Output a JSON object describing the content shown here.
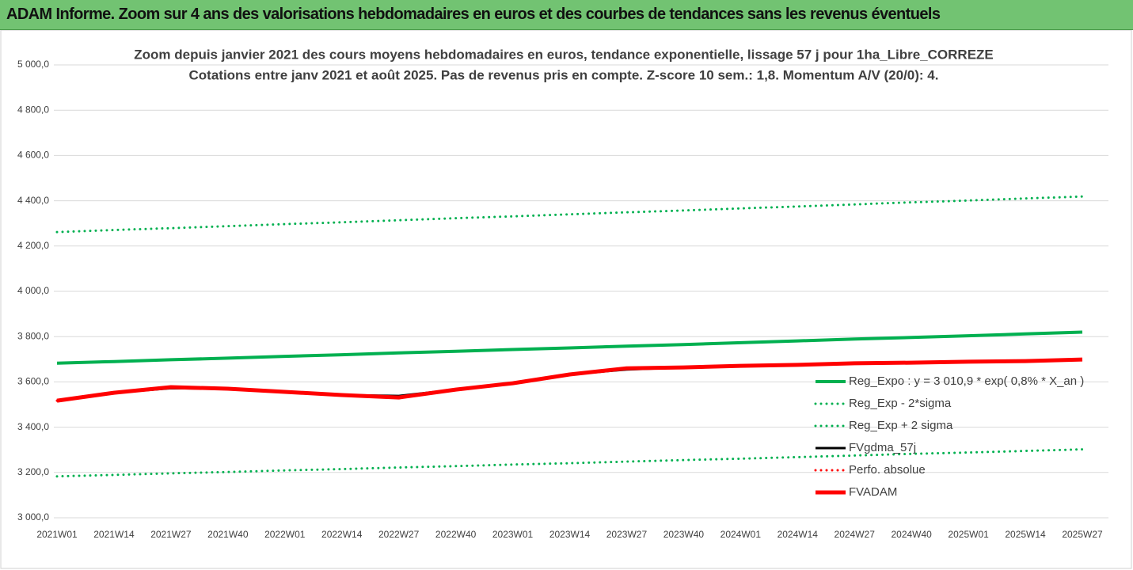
{
  "banner": "ADAM Informe. Zoom sur 4 ans des valorisations hebdomadaires en euros et des courbes de tendances sans les revenus éventuels",
  "chart_data": {
    "type": "line",
    "title": "Zoom depuis janvier 2021 des cours moyens hebdomadaires en euros, tendance exponentielle, lissage 57 j pour 1ha_Libre_CORREZE",
    "subtitle": "Cotations entre janv 2021 et août 2025.  Pas de revenus pris en compte. Z-score 10 sem.: 1,8. Momentum A/V (20/0): 4.",
    "categories": [
      "2021W01",
      "2021W14",
      "2021W27",
      "2021W40",
      "2022W01",
      "2022W14",
      "2022W27",
      "2022W40",
      "2023W01",
      "2023W14",
      "2023W27",
      "2023W40",
      "2024W01",
      "2024W14",
      "2024W27",
      "2024W40",
      "2025W01",
      "2025W14",
      "2025W27"
    ],
    "ylim": [
      3000,
      5000
    ],
    "yticks": [
      {
        "value": 3000,
        "label": "3 000,0"
      },
      {
        "value": 3200,
        "label": "3 200,0"
      },
      {
        "value": 3400,
        "label": "3 400,0"
      },
      {
        "value": 3600,
        "label": "3 600,0"
      },
      {
        "value": 3800,
        "label": "3 800,0"
      },
      {
        "value": 4000,
        "label": "4 000,0"
      },
      {
        "value": 4200,
        "label": "4 200,0"
      },
      {
        "value": 4400,
        "label": "4 400,0"
      },
      {
        "value": 4600,
        "label": "4 600,0"
      },
      {
        "value": 4800,
        "label": "4 800,0"
      },
      {
        "value": 5000,
        "label": "5 000,0"
      }
    ],
    "grid": true,
    "series": [
      {
        "name": "Reg_Expo : y = 3 010,9 * exp( 0,8% *  X_an )",
        "color": "#00b050",
        "style": "solid",
        "width": 4,
        "values": [
          3683,
          3690,
          3698,
          3705,
          3713,
          3720,
          3728,
          3735,
          3743,
          3750,
          3758,
          3765,
          3773,
          3781,
          3789,
          3796,
          3804,
          3812,
          3820
        ]
      },
      {
        "name": "Reg_Exp - 2*sigma",
        "color": "#00b050",
        "style": "dotted",
        "width": 3,
        "values": [
          3183,
          3189,
          3196,
          3202,
          3209,
          3215,
          3222,
          3228,
          3235,
          3241,
          3248,
          3255,
          3261,
          3268,
          3275,
          3282,
          3288,
          3295,
          3302
        ]
      },
      {
        "name": "Reg_Exp + 2 sigma",
        "color": "#00b050",
        "style": "dotted",
        "width": 3,
        "values": [
          4262,
          4271,
          4279,
          4288,
          4297,
          4305,
          4314,
          4323,
          4331,
          4340,
          4349,
          4357,
          4366,
          4375,
          4384,
          4393,
          4401,
          4410,
          4419
        ]
      },
      {
        "name": "FVgdma_57j",
        "color": "#000000",
        "style": "solid",
        "width": 3,
        "values": [
          3517,
          3552,
          3572,
          3570,
          3556,
          3542,
          3538,
          3566,
          3594,
          3633,
          3655,
          3664,
          3671,
          3675,
          3682,
          3685,
          3689,
          3692,
          3699
        ]
      },
      {
        "name": "Perfo. absolue",
        "color": "#ff0000",
        "style": "dotted",
        "width": 3,
        "values": [
          3517,
          3552,
          3577,
          3570,
          3556,
          3542,
          3531,
          3566,
          3594,
          3633,
          3660,
          3664,
          3671,
          3675,
          3682,
          3685,
          3689,
          3692,
          3699
        ]
      },
      {
        "name": "FVADAM",
        "color": "#ff0000",
        "style": "solid",
        "width": 5,
        "values": [
          3517,
          3552,
          3577,
          3570,
          3556,
          3542,
          3531,
          3566,
          3594,
          3633,
          3660,
          3664,
          3671,
          3675,
          3682,
          3685,
          3689,
          3692,
          3699
        ]
      }
    ]
  }
}
